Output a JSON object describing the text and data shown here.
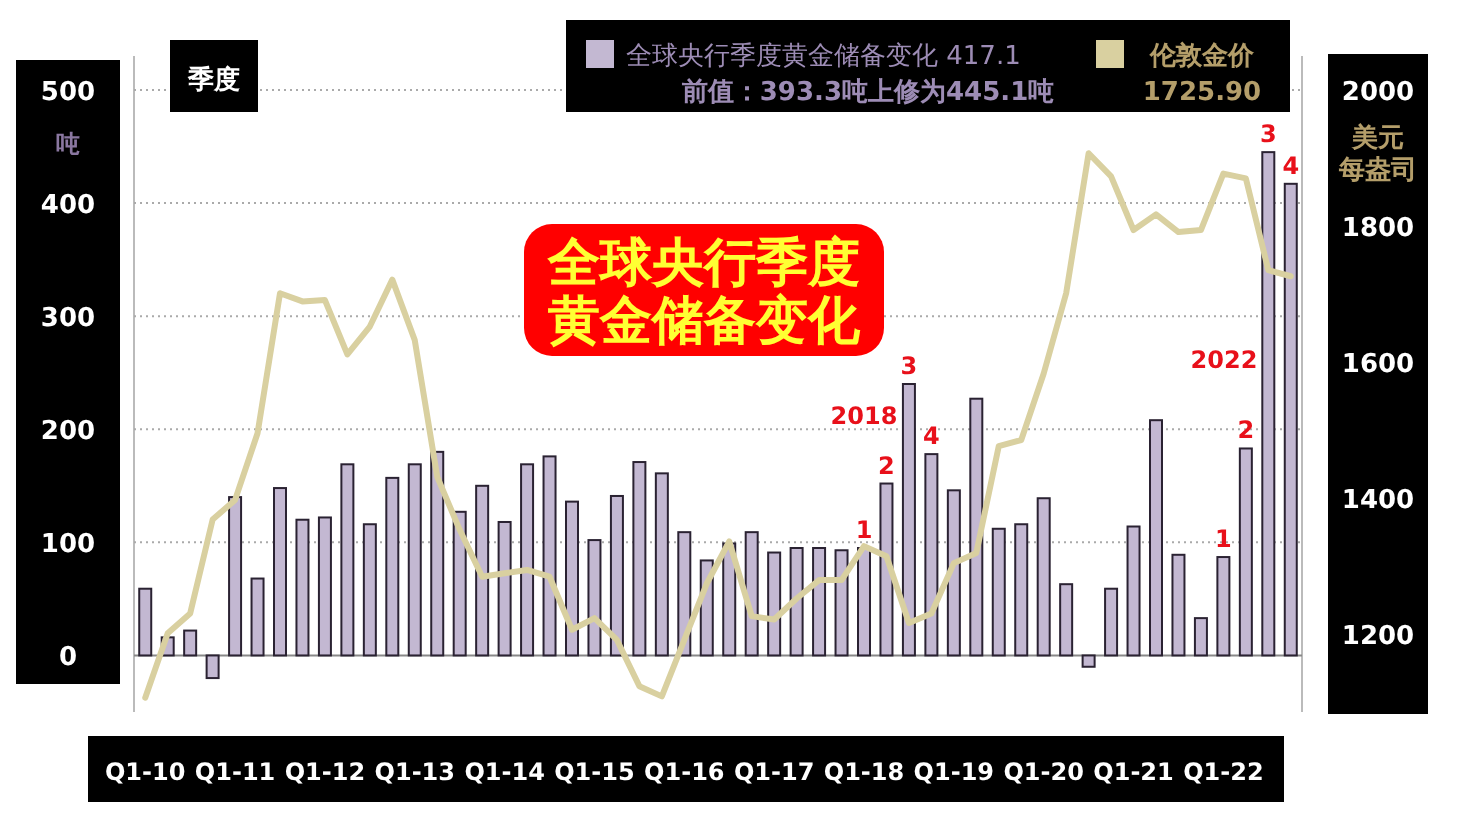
{
  "chart_data": {
    "type": "bar",
    "title": "全球央行季度黄金储备变化",
    "ylabel": "吨",
    "y2label": "美元每盎司",
    "categories": [
      "Q1-10",
      null,
      null,
      null,
      "Q1-11",
      null,
      null,
      null,
      "Q1-12",
      null,
      null,
      null,
      "Q1-13",
      null,
      null,
      null,
      "Q1-14",
      null,
      null,
      null,
      "Q1-15",
      null,
      null,
      null,
      "Q1-16",
      null,
      null,
      null,
      "Q1-17",
      null,
      null,
      null,
      "Q1-18",
      null,
      null,
      null,
      "Q1-19",
      null,
      null,
      null,
      "Q1-20",
      null,
      null,
      null,
      "Q1-21",
      null,
      null,
      null,
      "Q1-22",
      null,
      null,
      null
    ],
    "series": [
      {
        "name": "全球央行季度黄金储备变化 417.1",
        "color": "#c3b8d2",
        "values": [
          59,
          16,
          22,
          -20,
          140,
          68,
          148,
          120,
          122,
          169,
          116,
          157,
          169,
          180,
          127,
          150,
          118,
          169,
          176,
          136,
          102,
          141,
          171,
          161,
          109,
          84,
          99,
          109,
          91,
          95,
          95,
          93,
          95,
          152,
          240,
          178,
          146,
          227,
          112,
          116,
          139,
          63,
          -10,
          59,
          114,
          208,
          89,
          33,
          87,
          183,
          445,
          417
        ]
      },
      {
        "name": "伦敦金价",
        "type": "line",
        "axis": "y2",
        "color": "#d9d0a0",
        "values": [
          1106,
          1201,
          1230,
          1368,
          1397,
          1495,
          1701,
          1689,
          1691,
          1611,
          1652,
          1721,
          1632,
          1431,
          1353,
          1284,
          1289,
          1294,
          1284,
          1206,
          1223,
          1191,
          1123,
          1108,
          1191,
          1274,
          1336,
          1226,
          1221,
          1252,
          1279,
          1279,
          1329,
          1314,
          1216,
          1230,
          1304,
          1319,
          1476,
          1485,
          1583,
          1701,
          1907,
          1873,
          1794,
          1817,
          1791,
          1794,
          1877,
          1870,
          1735,
          1726
        ]
      }
    ],
    "ylim": [
      -50,
      530
    ],
    "yticks": [
      0,
      100,
      200,
      300,
      400,
      500
    ],
    "y2lim": [
      1085,
      2050
    ],
    "y2ticks": [
      1200,
      1400,
      1600,
      1800,
      2000
    ],
    "grid": "y",
    "legend": "top right",
    "annotations": [
      "季度",
      "前值：393.3吨上修为445.1吨",
      "1725.90",
      "2018",
      "2022",
      "1",
      "2",
      "3",
      "4",
      "1",
      "2",
      "3",
      "4"
    ]
  }
}
